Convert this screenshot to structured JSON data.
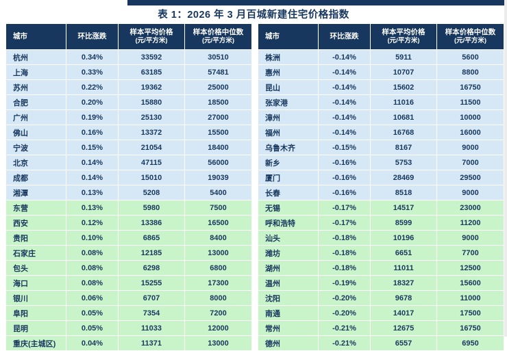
{
  "colors": {
    "header_bg": "#17375E",
    "row_blue": "#D6E8F6",
    "row_green": "#C9F4C9",
    "text_navy": "#17375E",
    "accent_bar": "#17375E"
  },
  "chart_data": {
    "type": "table",
    "title": "表 1：2026 年 3 月百城新建住宅价格指数",
    "columns": [
      {
        "label": "城市",
        "sub": ""
      },
      {
        "label": "环比涨跌",
        "sub": ""
      },
      {
        "label": "样本平均价格",
        "sub": "(元/平方米)"
      },
      {
        "label": "样本价格中位数",
        "sub": "(元/平方米)"
      }
    ],
    "tables": [
      {
        "rows": [
          [
            "杭州",
            "0.34%",
            "33592",
            "30510",
            "blue"
          ],
          [
            "上海",
            "0.33%",
            "63185",
            "57481",
            "blue"
          ],
          [
            "苏州",
            "0.22%",
            "19362",
            "25000",
            "blue"
          ],
          [
            "合肥",
            "0.20%",
            "15880",
            "18500",
            "blue"
          ],
          [
            "广州",
            "0.19%",
            "25130",
            "27000",
            "blue"
          ],
          [
            "佛山",
            "0.16%",
            "13372",
            "15500",
            "blue"
          ],
          [
            "宁波",
            "0.15%",
            "21054",
            "18400",
            "blue"
          ],
          [
            "北京",
            "0.14%",
            "47115",
            "56000",
            "blue"
          ],
          [
            "成都",
            "0.14%",
            "15010",
            "19039",
            "blue"
          ],
          [
            "湘潭",
            "0.13%",
            "5208",
            "5400",
            "blue"
          ],
          [
            "东营",
            "0.13%",
            "5980",
            "7500",
            "green"
          ],
          [
            "西安",
            "0.12%",
            "13386",
            "16500",
            "green"
          ],
          [
            "贵阳",
            "0.10%",
            "6865",
            "8400",
            "green"
          ],
          [
            "石家庄",
            "0.08%",
            "12185",
            "13000",
            "green"
          ],
          [
            "包头",
            "0.08%",
            "6298",
            "6800",
            "green"
          ],
          [
            "海口",
            "0.08%",
            "15255",
            "17300",
            "green"
          ],
          [
            "银川",
            "0.06%",
            "6707",
            "8000",
            "green"
          ],
          [
            "阜阳",
            "0.05%",
            "7354",
            "7200",
            "green"
          ],
          [
            "昆明",
            "0.05%",
            "11033",
            "12000",
            "green"
          ],
          [
            "重庆(主城区)",
            "0.04%",
            "11371",
            "13000",
            "green"
          ]
        ]
      },
      {
        "rows": [
          [
            "株洲",
            "-0.14%",
            "5911",
            "5600",
            "blue"
          ],
          [
            "惠州",
            "-0.14%",
            "10707",
            "8800",
            "blue"
          ],
          [
            "昆山",
            "-0.14%",
            "15602",
            "16750",
            "blue"
          ],
          [
            "张家港",
            "-0.14%",
            "11016",
            "11500",
            "blue"
          ],
          [
            "漳州",
            "-0.14%",
            "10681",
            "10000",
            "blue"
          ],
          [
            "福州",
            "-0.14%",
            "16768",
            "16000",
            "blue"
          ],
          [
            "乌鲁木齐",
            "-0.15%",
            "8167",
            "9000",
            "blue"
          ],
          [
            "新乡",
            "-0.16%",
            "5753",
            "7000",
            "blue"
          ],
          [
            "厦门",
            "-0.16%",
            "28469",
            "29500",
            "blue"
          ],
          [
            "长春",
            "-0.16%",
            "8518",
            "9000",
            "blue"
          ],
          [
            "无锡",
            "-0.17%",
            "14517",
            "23000",
            "green"
          ],
          [
            "呼和浩特",
            "-0.17%",
            "8599",
            "11200",
            "green"
          ],
          [
            "汕头",
            "-0.18%",
            "10196",
            "9000",
            "green"
          ],
          [
            "潍坊",
            "-0.18%",
            "6651",
            "7700",
            "green"
          ],
          [
            "湖州",
            "-0.18%",
            "11011",
            "12500",
            "green"
          ],
          [
            "温州",
            "-0.19%",
            "18327",
            "15600",
            "green"
          ],
          [
            "沈阳",
            "-0.20%",
            "9678",
            "11000",
            "green"
          ],
          [
            "南通",
            "-0.20%",
            "14017",
            "17500",
            "green"
          ],
          [
            "常州",
            "-0.21%",
            "12675",
            "16750",
            "green"
          ],
          [
            "德州",
            "-0.21%",
            "6557",
            "6950",
            "green"
          ]
        ]
      }
    ]
  }
}
